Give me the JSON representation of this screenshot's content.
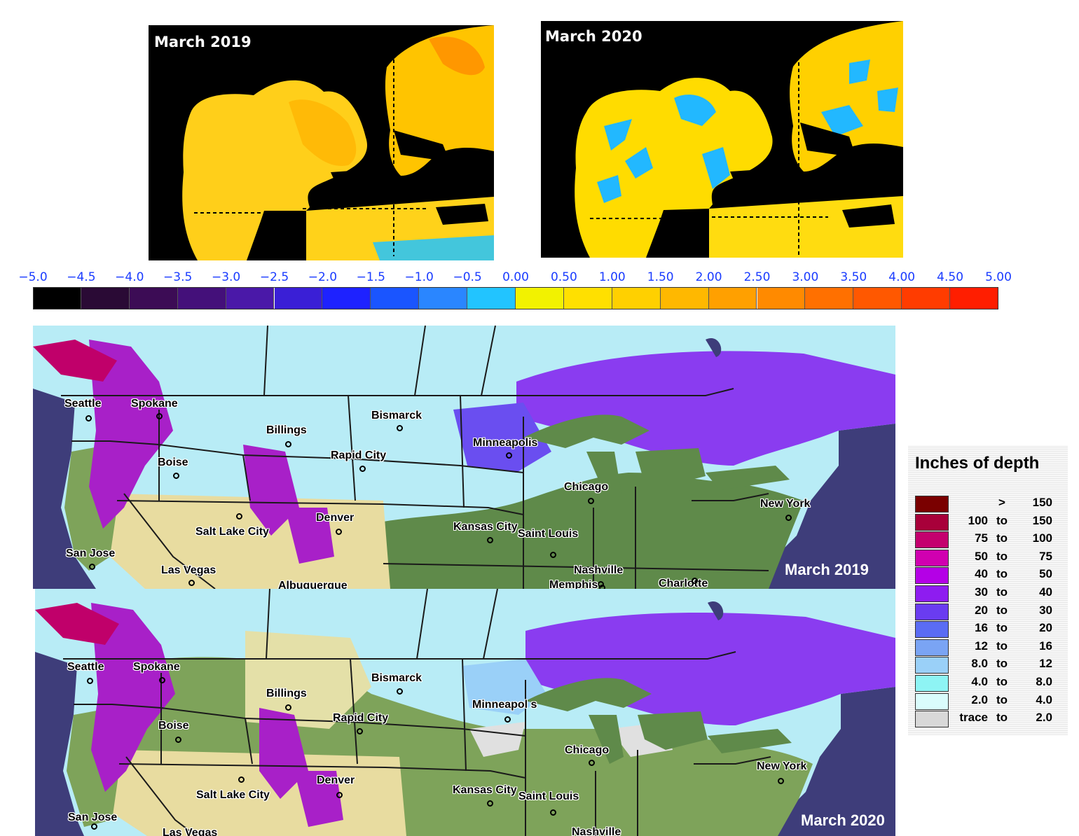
{
  "anomaly_maps": [
    {
      "title": "March 2019"
    },
    {
      "title": "March 2020"
    }
  ],
  "colorbar": {
    "labels": [
      "−5.0",
      "−4.5",
      "−4.0",
      "−3.5",
      "−3.0",
      "−2.5",
      "−2.0",
      "−1.5",
      "−1.0",
      "−0.5",
      "0.00",
      "0.50",
      "1.00",
      "1.50",
      "2.00",
      "2.50",
      "3.00",
      "3.50",
      "4.00",
      "4.50",
      "5.00"
    ],
    "colors": [
      "#000000",
      "#2a0a35",
      "#3c0c55",
      "#44107a",
      "#4a18a8",
      "#3a1fd6",
      "#1e22ff",
      "#1a55ff",
      "#2a86ff",
      "#22c4ff",
      "#f2f200",
      "#ffe000",
      "#ffd000",
      "#ffb800",
      "#ffa000",
      "#ff8a00",
      "#ff7000",
      "#ff5800",
      "#ff3c00",
      "#ff1e00"
    ]
  },
  "snow_maps": [
    {
      "year_label": "March 2019",
      "cities": [
        "Seattle",
        "Spokane",
        "Billings",
        "Bismarck",
        "Minneapolis",
        "Rapid City",
        "Boise",
        "Chicago",
        "New York",
        "Denver",
        "Salt Lake City",
        "Kansas City",
        "Saint Louis",
        "San Jose",
        "Las Vegas",
        "Nashville",
        "Albuquerque",
        "Memphis",
        "Charlotte"
      ]
    },
    {
      "year_label": "March 2020",
      "cities": [
        "Seattle",
        "Spokane",
        "Bismarck",
        "Billings",
        "Minneapol s",
        "Rapid City",
        "Boise",
        "Chicago",
        "New York",
        "Denver",
        "Salt Lake City",
        "Kansas City",
        "Saint Louis",
        "San Jose",
        "Las Vegas",
        "Nashville"
      ]
    }
  ],
  "legend": {
    "title": "Inches of depth",
    "rows": [
      {
        "lo": "",
        "to": ">",
        "hi": "150",
        "color": "#7a0000"
      },
      {
        "lo": "100",
        "to": "to",
        "hi": "150",
        "color": "#a8003a"
      },
      {
        "lo": "75",
        "to": "to",
        "hi": "100",
        "color": "#c4006e"
      },
      {
        "lo": "50",
        "to": "to",
        "hi": "75",
        "color": "#d000b0"
      },
      {
        "lo": "40",
        "to": "to",
        "hi": "50",
        "color": "#b400e6"
      },
      {
        "lo": "30",
        "to": "to",
        "hi": "40",
        "color": "#8e1cf0"
      },
      {
        "lo": "20",
        "to": "to",
        "hi": "30",
        "color": "#6a3cf0"
      },
      {
        "lo": "16",
        "to": "to",
        "hi": "20",
        "color": "#5a6cf4"
      },
      {
        "lo": "12",
        "to": "to",
        "hi": "16",
        "color": "#7aa4f4"
      },
      {
        "lo": "8.0",
        "to": "to",
        "hi": "12",
        "color": "#9ad0f8"
      },
      {
        "lo": "4.0",
        "to": "to",
        "hi": "8.0",
        "color": "#8ef4f4"
      },
      {
        "lo": "2.0",
        "to": "to",
        "hi": "4.0",
        "color": "#dafcfc"
      },
      {
        "lo": "trace",
        "to": "to",
        "hi": "2.0",
        "color": "#d8d8d8"
      }
    ]
  }
}
